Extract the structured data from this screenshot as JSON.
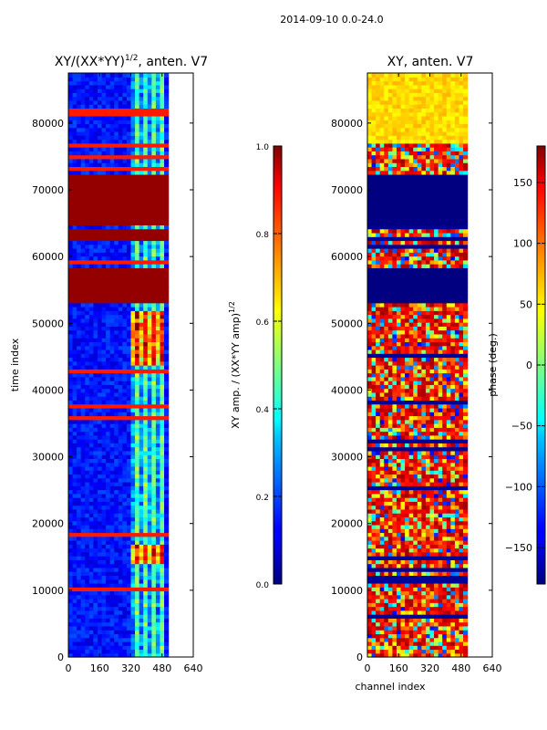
{
  "suptitle": "2014-09-10 0.0-24.0",
  "chart_data": [
    {
      "type": "heatmap",
      "title_prefix": "XY/(XX*YY)",
      "title_exponent": "1/2",
      "title_suffix": ", anten. V7",
      "xlabel": "",
      "ylabel": "time index",
      "xlim": [
        0,
        640
      ],
      "ylim": [
        0,
        87500
      ],
      "xticks": [
        0,
        160,
        320,
        480,
        640
      ],
      "yticks": [
        0,
        10000,
        20000,
        30000,
        40000,
        50000,
        60000,
        70000,
        80000
      ],
      "data_extent_x": [
        0,
        512
      ],
      "colormap": "jet",
      "saturated_bands": [
        [
          53000,
          58500
        ],
        [
          62500,
          64000
        ],
        [
          65000,
          72300
        ]
      ],
      "colorbar": {
        "label_prefix": "XY amp. / (XX*YY amp)",
        "label_exponent": "1/2",
        "range": [
          0.0,
          1.0
        ],
        "ticks": [
          0.0,
          0.2,
          0.4,
          0.6,
          0.8,
          1.0
        ],
        "tick_labels": [
          "0.0",
          "0.2",
          "0.4",
          "0.6",
          "0.8",
          "1.0"
        ]
      }
    },
    {
      "type": "heatmap",
      "title": "XY, anten. V7",
      "xlabel": "channel index",
      "ylabel": "",
      "xlim": [
        0,
        640
      ],
      "ylim": [
        0,
        87500
      ],
      "xticks": [
        0,
        160,
        320,
        480,
        640
      ],
      "yticks": [
        0,
        10000,
        20000,
        30000,
        40000,
        50000,
        60000,
        70000,
        80000
      ],
      "data_extent_x": [
        0,
        512
      ],
      "colormap": "jet",
      "flat_bands": [
        [
          53000,
          58500
        ],
        [
          65000,
          72300
        ]
      ],
      "colorbar": {
        "label": "phase (deg.)",
        "range": [
          -180,
          180
        ],
        "ticks": [
          -150,
          -100,
          -50,
          0,
          50,
          100,
          150
        ],
        "tick_labels": [
          "−150",
          "−100",
          "−50",
          "0",
          "50",
          "100",
          "150"
        ]
      }
    }
  ]
}
